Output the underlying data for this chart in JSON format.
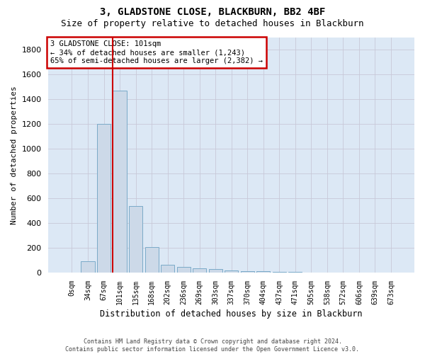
{
  "title": "3, GLADSTONE CLOSE, BLACKBURN, BB2 4BF",
  "subtitle": "Size of property relative to detached houses in Blackburn",
  "xlabel": "Distribution of detached houses by size in Blackburn",
  "ylabel": "Number of detached properties",
  "footer_line1": "Contains HM Land Registry data © Crown copyright and database right 2024.",
  "footer_line2": "Contains public sector information licensed under the Open Government Licence v3.0.",
  "bar_labels": [
    "0sqm",
    "34sqm",
    "67sqm",
    "101sqm",
    "135sqm",
    "168sqm",
    "202sqm",
    "236sqm",
    "269sqm",
    "303sqm",
    "337sqm",
    "370sqm",
    "404sqm",
    "437sqm",
    "471sqm",
    "505sqm",
    "538sqm",
    "572sqm",
    "606sqm",
    "639sqm",
    "673sqm"
  ],
  "bar_values": [
    0,
    90,
    1200,
    1470,
    540,
    205,
    65,
    45,
    35,
    28,
    15,
    12,
    10,
    8,
    5,
    3,
    2,
    2,
    2,
    0,
    0
  ],
  "bar_color": "#ccd9e8",
  "bar_edge_color": "#7aaac8",
  "grid_color": "#c8c8d8",
  "background_color": "#dce8f5",
  "annotation_line1": "3 GLADSTONE CLOSE: 101sqm",
  "annotation_line2": "← 34% of detached houses are smaller (1,243)",
  "annotation_line3": "65% of semi-detached houses are larger (2,382) →",
  "annotation_box_color": "#cc0000",
  "red_line_bar_index": 3,
  "ylim": [
    0,
    1900
  ],
  "yticks": [
    0,
    200,
    400,
    600,
    800,
    1000,
    1200,
    1400,
    1600,
    1800
  ],
  "title_fontsize": 10,
  "subtitle_fontsize": 9
}
